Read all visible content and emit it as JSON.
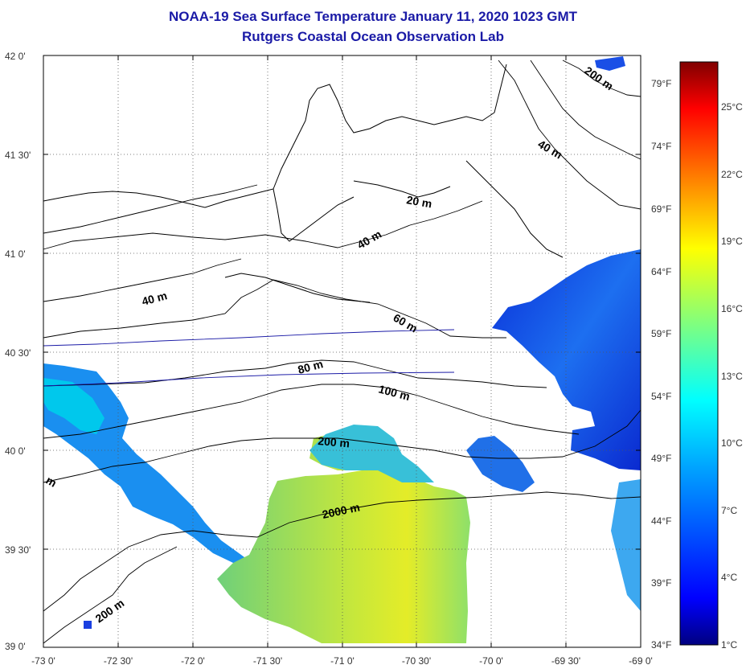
{
  "title": "NOAA-19 Sea Surface Temperature January 11, 2020 1023 GMT",
  "subtitle": "Rutgers Coastal Ocean Observation Lab",
  "map": {
    "lat_labels": [
      "42 0'",
      "41 30'",
      "41 0'",
      "40 30'",
      "40 0'",
      "39 30'",
      "39 0'"
    ],
    "lon_labels": [
      "-73 0'",
      "-72 30'",
      "-72 0'",
      "-71 30'",
      "-71 0'",
      "-70 30'",
      "-70 0'",
      "-69 30'",
      "-69 0'"
    ],
    "lat_range": [
      39.0,
      42.0
    ],
    "lon_range": [
      -73.0,
      -69.0
    ],
    "grid": "dotted",
    "contour_labels": [
      "200 m",
      "40 m",
      "20 m",
      "40 m",
      "40 m",
      "60 m",
      "80 m",
      "100 m",
      "200 m",
      "2000 m",
      "m",
      "200 m"
    ]
  },
  "colorbar": {
    "fahrenheit_labels": [
      "79°F",
      "74°F",
      "69°F",
      "64°F",
      "59°F",
      "54°F",
      "49°F",
      "44°F",
      "39°F",
      "34°F"
    ],
    "celsius_labels": [
      "25°C",
      "22°C",
      "19°C",
      "16°C",
      "13°C",
      "10°C",
      "7°C",
      "4°C",
      "1°C"
    ],
    "range_c": [
      1,
      27
    ],
    "colors": [
      "#000080",
      "#0000ff",
      "#00bfff",
      "#00ffff",
      "#7fff7f",
      "#ffff00",
      "#ff7f00",
      "#ff0000",
      "#800000"
    ]
  }
}
